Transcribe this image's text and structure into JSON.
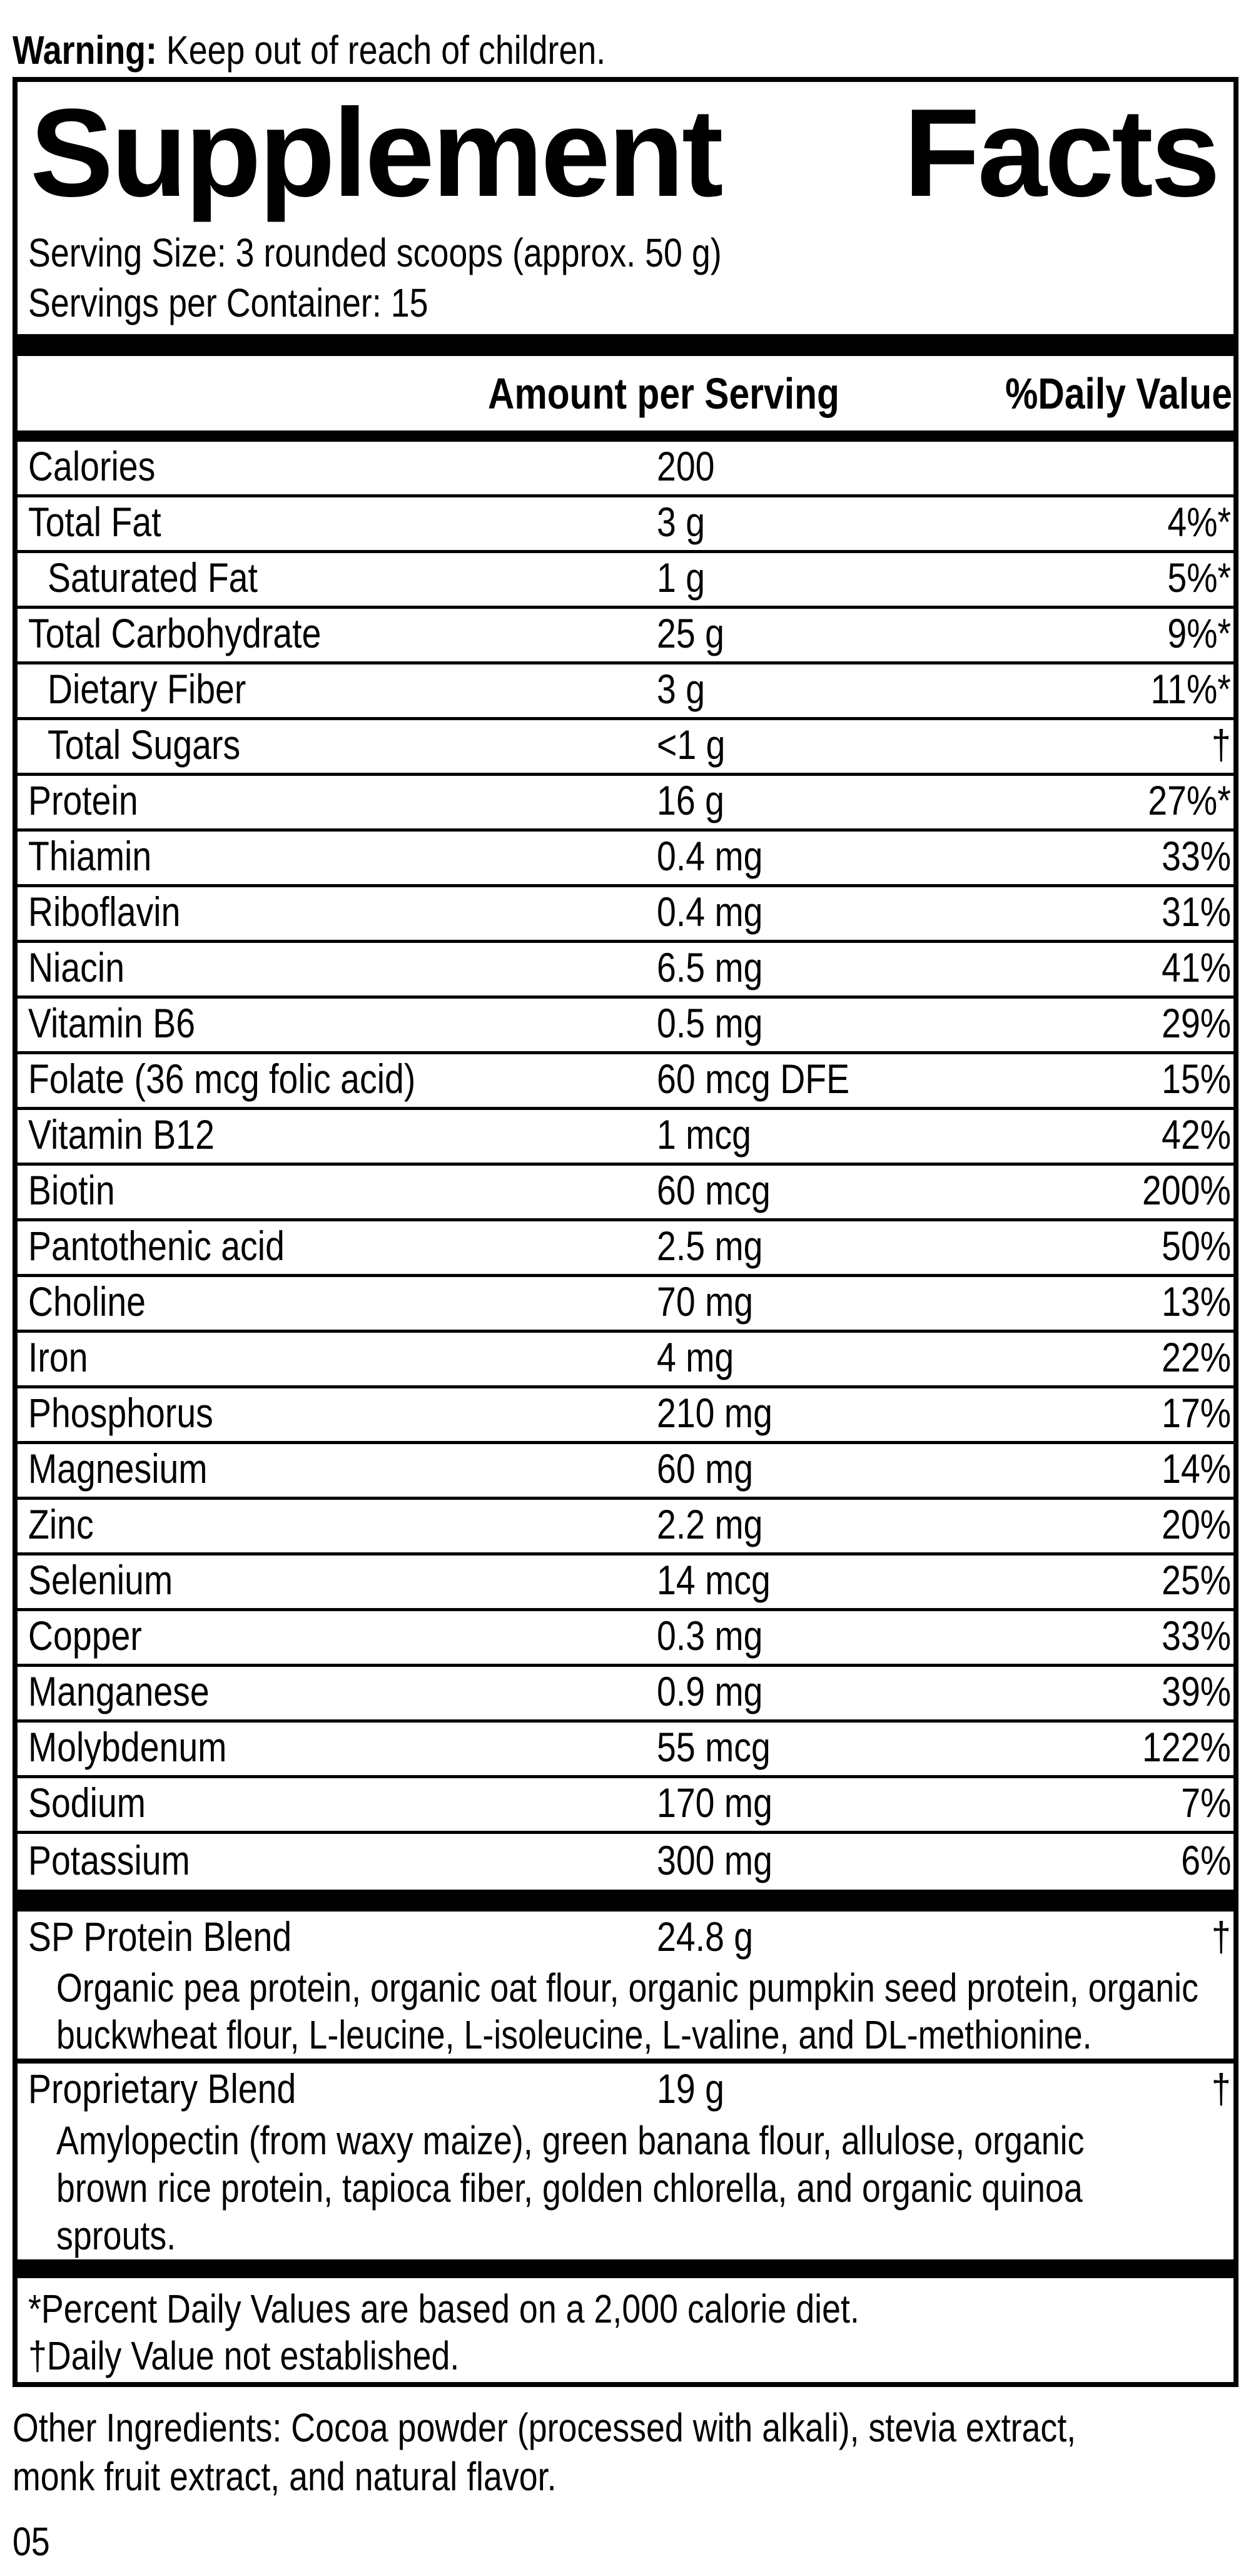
{
  "page": {
    "warning_bold": "Warning:",
    "warning_text": " Keep out of reach of children.",
    "other_ingredients_line1": "Other Ingredients: Cocoa powder (processed with alkali), stevia extract,",
    "other_ingredients_line2": "monk fruit extract, and natural flavor.",
    "page_number": "05"
  },
  "label": {
    "title_word1": "Supplement",
    "title_word2": "Facts",
    "serving_size_line": "Serving Size: 3 rounded scoops (approx. 50 g)",
    "servings_per_container_line": "Servings per Container: 15",
    "col_amount_header": "Amount per Serving",
    "col_dv_header": "%Daily Value",
    "footnote_star": "*Percent Daily Values are based on a 2,000 calorie diet.",
    "footnote_dagger": "†Daily Value not established.",
    "colors": {
      "ink": "#000000",
      "paper": "#ffffff"
    }
  },
  "table": {
    "rows": [
      {
        "label": "Calories",
        "amount": "200",
        "dv": "",
        "indent": false
      },
      {
        "label": "Total Fat",
        "amount": "3 g",
        "dv": "4%*",
        "indent": false
      },
      {
        "label": "Saturated Fat",
        "amount": "1 g",
        "dv": "5%*",
        "indent": true
      },
      {
        "label": "Total Carbohydrate",
        "amount": "25 g",
        "dv": "9%*",
        "indent": false
      },
      {
        "label": "Dietary Fiber",
        "amount": "3 g",
        "dv": "11%*",
        "indent": true
      },
      {
        "label": "Total Sugars",
        "amount": "<1 g",
        "dv": "†",
        "indent": true
      },
      {
        "label": "Protein",
        "amount": "16 g",
        "dv": "27%*",
        "indent": false
      },
      {
        "label": "Thiamin",
        "amount": "0.4 mg",
        "dv": "33%",
        "indent": false
      },
      {
        "label": "Riboflavin",
        "amount": "0.4 mg",
        "dv": "31%",
        "indent": false
      },
      {
        "label": "Niacin",
        "amount": "6.5 mg",
        "dv": "41%",
        "indent": false
      },
      {
        "label": "Vitamin B6",
        "amount": "0.5 mg",
        "dv": "29%",
        "indent": false
      },
      {
        "label": "Folate (36 mcg folic acid)",
        "amount": "60 mcg DFE",
        "dv": "15%",
        "indent": false
      },
      {
        "label": "Vitamin B12",
        "amount": "1 mcg",
        "dv": "42%",
        "indent": false
      },
      {
        "label": "Biotin",
        "amount": "60 mcg",
        "dv": "200%",
        "indent": false
      },
      {
        "label": "Pantothenic acid",
        "amount": "2.5 mg",
        "dv": "50%",
        "indent": false
      },
      {
        "label": "Choline",
        "amount": "70 mg",
        "dv": "13%",
        "indent": false
      },
      {
        "label": "Iron",
        "amount": "4 mg",
        "dv": "22%",
        "indent": false
      },
      {
        "label": "Phosphorus",
        "amount": "210 mg",
        "dv": "17%",
        "indent": false
      },
      {
        "label": "Magnesium",
        "amount": "60 mg",
        "dv": "14%",
        "indent": false
      },
      {
        "label": "Zinc",
        "amount": "2.2 mg",
        "dv": "20%",
        "indent": false
      },
      {
        "label": "Selenium",
        "amount": "14 mcg",
        "dv": "25%",
        "indent": false
      },
      {
        "label": "Copper",
        "amount": "0.3 mg",
        "dv": "33%",
        "indent": false
      },
      {
        "label": "Manganese",
        "amount": "0.9 mg",
        "dv": "39%",
        "indent": false
      },
      {
        "label": "Molybdenum",
        "amount": "55 mcg",
        "dv": "122%",
        "indent": false
      },
      {
        "label": "Sodium",
        "amount": "170 mg",
        "dv": "7%",
        "indent": false
      },
      {
        "label": "Potassium",
        "amount": "300 mg",
        "dv": "6%",
        "indent": false
      }
    ],
    "blends": [
      {
        "label": "SP Protein Blend",
        "amount": "24.8 g",
        "dv": "†",
        "desc_lines": [
          "Organic pea protein, organic oat flour, organic pumpkin seed protein, organic",
          "buckwheat flour, L-leucine, L-isoleucine, L-valine, and DL-methionine."
        ]
      },
      {
        "label": "Proprietary Blend",
        "amount": "19 g",
        "dv": "†",
        "desc_lines": [
          "Amylopectin (from waxy maize), green banana flour, allulose, organic",
          "brown rice protein, tapioca fiber, golden chlorella, and organic quinoa",
          "sprouts."
        ]
      }
    ]
  }
}
